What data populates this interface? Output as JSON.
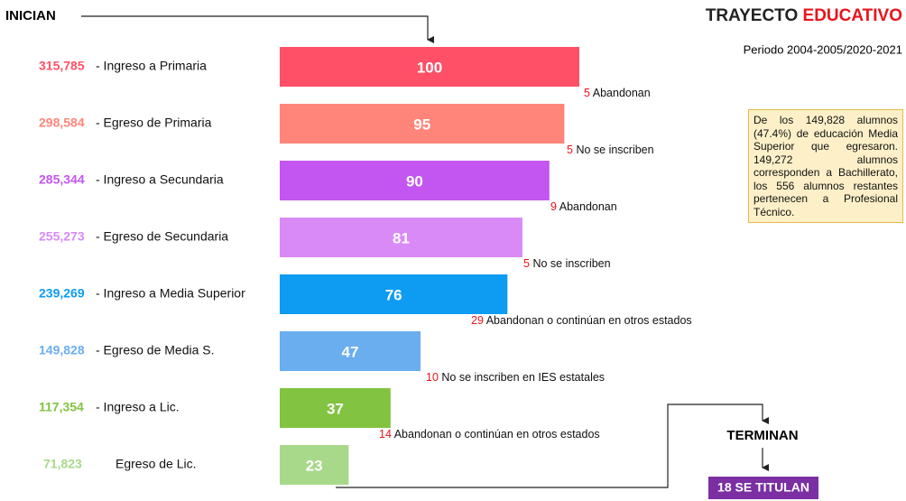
{
  "chart_data": {
    "type": "bar",
    "orientation": "horizontal",
    "title": [
      "TRAYECTO",
      "EDUCATIVO"
    ],
    "subtitle": "Periodo 2004-2005/2020-2021",
    "start_label": "INICIAN",
    "end_label": "TERMINAN",
    "result_label": "18 SE TITULAN",
    "note": "De los 149,828 alumnos (47.4%) de educación Media Superior que egresaron. 149,272 alumnos corresponden a Bachillerato, los 556 alumnos restantes pertenecen a Profesional Técnico.",
    "categories": [
      "-  Ingreso a Primaria",
      "-  Egreso de Primaria",
      "-  Ingreso a Secundaria",
      "-  Egreso de Secundaria",
      "-  Ingreso a Media Superior",
      "-  Egreso de Media S.",
      "-  Ingreso a Lic.",
      "Egreso de Lic."
    ],
    "counts": [
      315785,
      298584,
      285344,
      255273,
      239269,
      149828,
      117354,
      71823
    ],
    "count_labels": [
      "315,785",
      "298,584",
      "285,344",
      "255,273",
      "239,269",
      "149,828",
      "117,354",
      "71,823"
    ],
    "values": [
      100,
      95,
      90,
      81,
      76,
      47,
      37,
      23
    ],
    "colors": [
      "#ff5068",
      "#ff857a",
      "#c356f0",
      "#d98af7",
      "#0d9cf2",
      "#6aaef0",
      "#82c341",
      "#a8d98a"
    ],
    "xlim": [
      0,
      100
    ],
    "dropouts": [
      {
        "value": 5,
        "text": "Abandonan"
      },
      {
        "value": 5,
        "text": "No se inscriben"
      },
      {
        "value": 9,
        "text": "Abandonan"
      },
      {
        "value": 5,
        "text": "No se inscriben"
      },
      {
        "value": 29,
        "text": "Abandonan o continúan en otros estados"
      },
      {
        "value": 10,
        "text": "No se inscriben en IES estatales"
      },
      {
        "value": 14,
        "text": "Abandonan o continúan en otros estados"
      }
    ]
  }
}
